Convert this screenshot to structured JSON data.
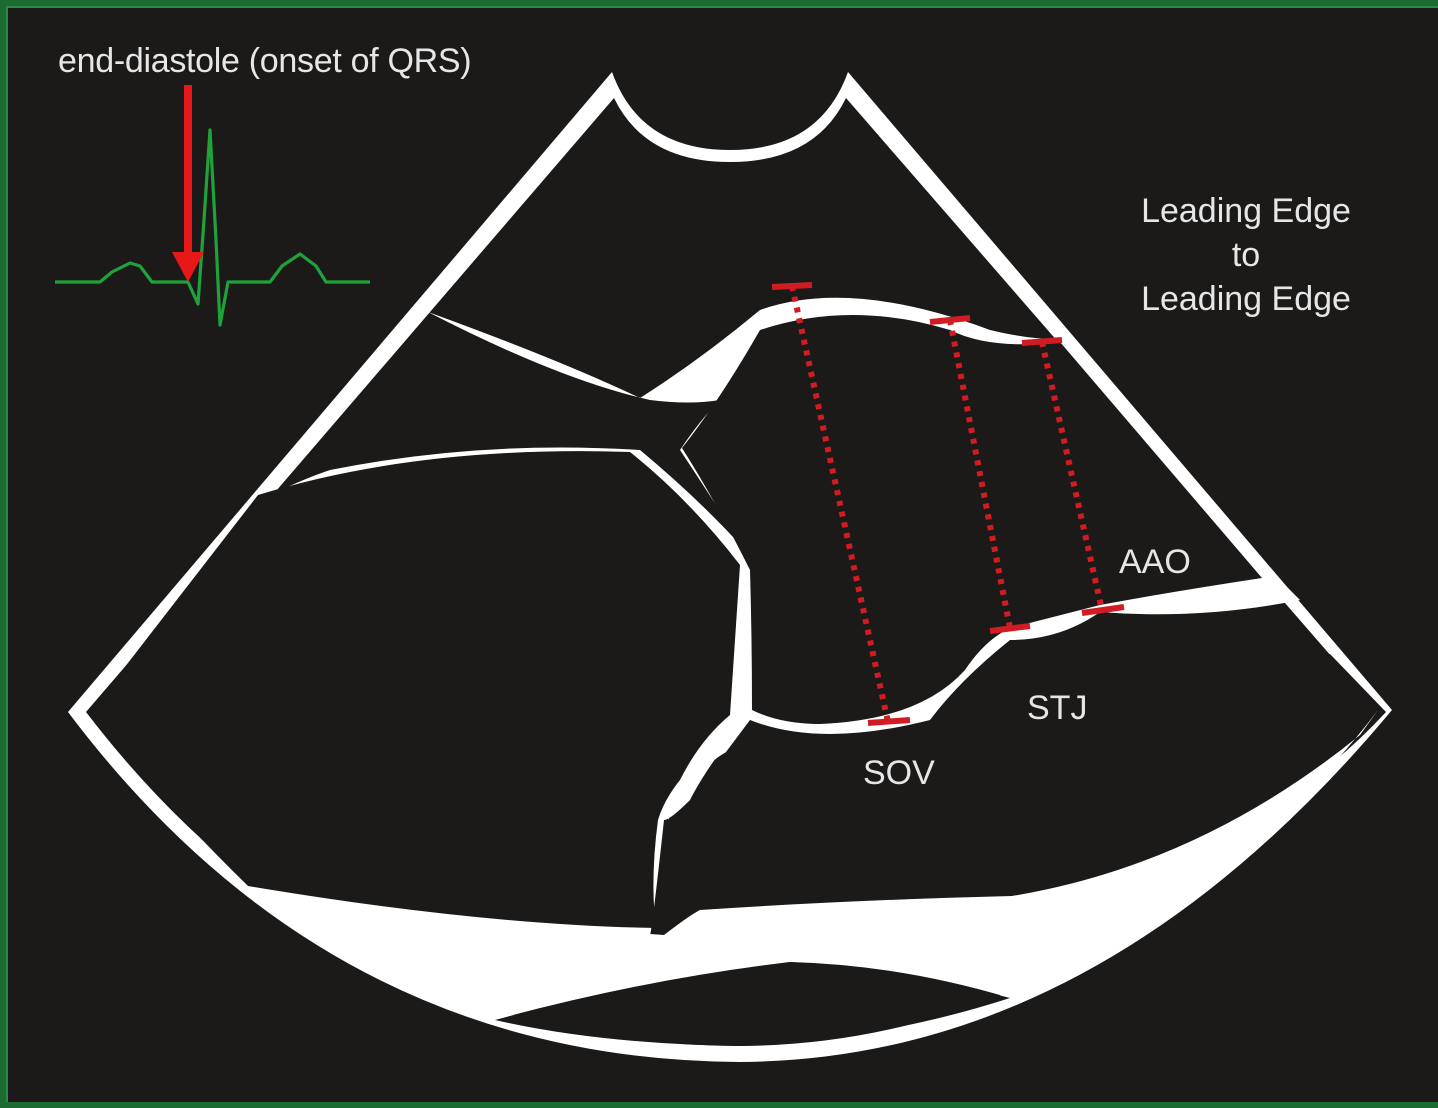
{
  "ecg": {
    "caption": "end-diastole (onset of QRS)"
  },
  "method": {
    "line1": "Leading Edge",
    "line2": "to",
    "line3": "Leading Edge"
  },
  "labels": {
    "aao": "AAO",
    "stj": "STJ",
    "sov": "SOV"
  },
  "colors": {
    "background": "#1b1a19",
    "border": "#1b6b32",
    "ecg_trace": "#1fa23a",
    "arrow": "#e81818",
    "measurement": "#d21c24",
    "structure": "#ffffff",
    "text": "#e6e6e6"
  }
}
